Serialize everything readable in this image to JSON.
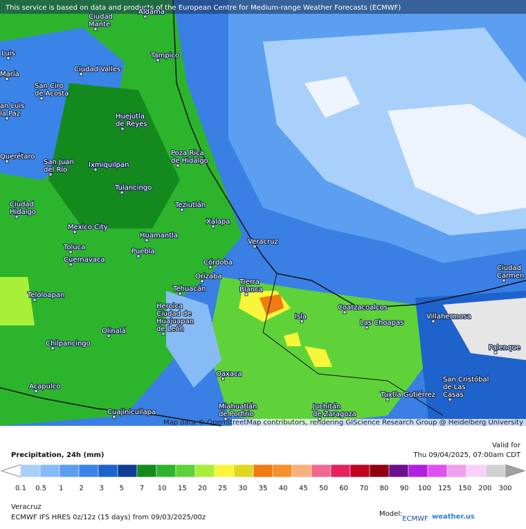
{
  "banner": "This service is based on data and products of the European Centre for Medium-range Weather Forecasts (ECMWF)",
  "attribution": "Map data © OpenStreetMap contributors, rendering GIScience Research Group @ Heidelberg University",
  "cities": [
    {
      "lines": [
        "Aldama"
      ]
    },
    {
      "lines": [
        "Ciudad",
        "Mante"
      ]
    },
    {
      "lines": [
        "Tampico"
      ]
    },
    {
      "lines": [
        "Ciudad Valles"
      ]
    },
    {
      "lines": [
        "San Ciro",
        "de Acosta"
      ]
    },
    {
      "lines": [
        "an Luis",
        "la Paz"
      ]
    },
    {
      "lines": [
        "Huejutla",
        "de Reyes"
      ]
    },
    {
      "lines": [
        "Querétaro"
      ]
    },
    {
      "lines": [
        "San Juan",
        "del Río"
      ]
    },
    {
      "lines": [
        "Ixmiquilpan"
      ]
    },
    {
      "lines": [
        "Poza Rica",
        "de Hidalgo"
      ]
    },
    {
      "lines": [
        "Tulancingo"
      ]
    },
    {
      "lines": [
        "Ciudad",
        "Hidalgo"
      ]
    },
    {
      "lines": [
        "Teziutlán"
      ]
    },
    {
      "lines": [
        "Xalapa"
      ]
    },
    {
      "lines": [
        "Mexico City"
      ]
    },
    {
      "lines": [
        "Huamantla"
      ]
    },
    {
      "lines": [
        "Toluca"
      ]
    },
    {
      "lines": [
        "Cuernavaca"
      ]
    },
    {
      "lines": [
        "Puebla"
      ]
    },
    {
      "lines": [
        "Veracruz"
      ]
    },
    {
      "lines": [
        "Córdoba"
      ]
    },
    {
      "lines": [
        "Orizaba"
      ]
    },
    {
      "lines": [
        "Tierra",
        "Blanca"
      ]
    },
    {
      "lines": [
        "Tehuacán"
      ]
    },
    {
      "lines": [
        "Teloloapan"
      ]
    },
    {
      "lines": [
        "Heroica",
        "Ciudad de",
        "Huajuapan",
        "de León"
      ]
    },
    {
      "lines": [
        "Olinalá"
      ]
    },
    {
      "lines": [
        "Isla"
      ]
    },
    {
      "lines": [
        "Coatzacoalcos"
      ]
    },
    {
      "lines": [
        "Las Choapas"
      ]
    },
    {
      "lines": [
        "Villahermosa"
      ]
    },
    {
      "lines": [
        "Ciudad",
        "Carmen"
      ]
    },
    {
      "lines": [
        "Palenque"
      ]
    },
    {
      "lines": [
        "Chilpancingo"
      ]
    },
    {
      "lines": [
        "Oaxaca"
      ]
    },
    {
      "lines": [
        "San Cristóbal",
        "de Las",
        "Casas"
      ]
    },
    {
      "lines": [
        "Acapulco"
      ]
    },
    {
      "lines": [
        "Tuxtla Gutiérrez"
      ]
    },
    {
      "lines": [
        "Miahuatlán",
        "de Porfirio"
      ]
    },
    {
      "lines": [
        "Juchitán",
        "de Zaragoza"
      ]
    },
    {
      "lines": [
        "Cuajinicuilapa"
      ]
    },
    {
      "lines": [
        "Luis"
      ]
    },
    {
      "lines": [
        "María"
      ]
    }
  ],
  "footer": {
    "title": "Precipitation, 24h (mm)",
    "valid_label": "Valid for",
    "valid_time": "Thu 09/04/2025, 07:00am CDT",
    "region": "Veracruz",
    "model_run": "ECMWF IFS HRES 0z/12z (15 days) from 09/03/2025/00z",
    "model_label": "Model:",
    "model_logo": "ECMWF",
    "brand": "weather.us"
  },
  "legend": {
    "labels": [
      "0.1",
      "0.5",
      "1",
      "2",
      "3",
      "5",
      "7",
      "10",
      "15",
      "20",
      "25",
      "30",
      "35",
      "40",
      "45",
      "50",
      "60",
      "70",
      "80",
      "90",
      "100",
      "125",
      "150",
      "200",
      "300"
    ],
    "colors": [
      "#a8d0fa",
      "#86bbf6",
      "#5c9ff0",
      "#3a84e8",
      "#1e63cc",
      "#0f3f94",
      "#148a1e",
      "#2cb52c",
      "#5fd23a",
      "#a8ef3a",
      "#f8f53a",
      "#e0d81f",
      "#f07b10",
      "#f8902c",
      "#f8b07a",
      "#f06890",
      "#e82060",
      "#c00020",
      "#900010",
      "#6a1090",
      "#b020e0",
      "#e050f0",
      "#f0a0f0",
      "#f8d0f8",
      "#d0d0d0"
    ]
  }
}
